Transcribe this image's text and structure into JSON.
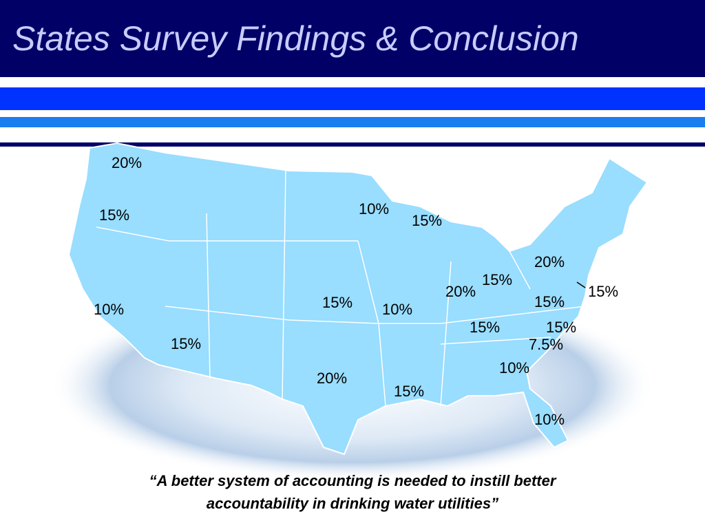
{
  "header": {
    "title": "States Survey Findings & Conclusion"
  },
  "map": {
    "labels": [
      "20%",
      "15%",
      "10%",
      "15%",
      "15%",
      "20%",
      "10%",
      "15%",
      "10%",
      "15%",
      "20%",
      "15%",
      "20%",
      "15%",
      "15%",
      "15%",
      "15%",
      "7.5%",
      "10%",
      "10%"
    ]
  },
  "quote": {
    "lines": [
      "“A better system of accounting is needed to instill better",
      "accountability in drinking water utilities”"
    ]
  }
}
